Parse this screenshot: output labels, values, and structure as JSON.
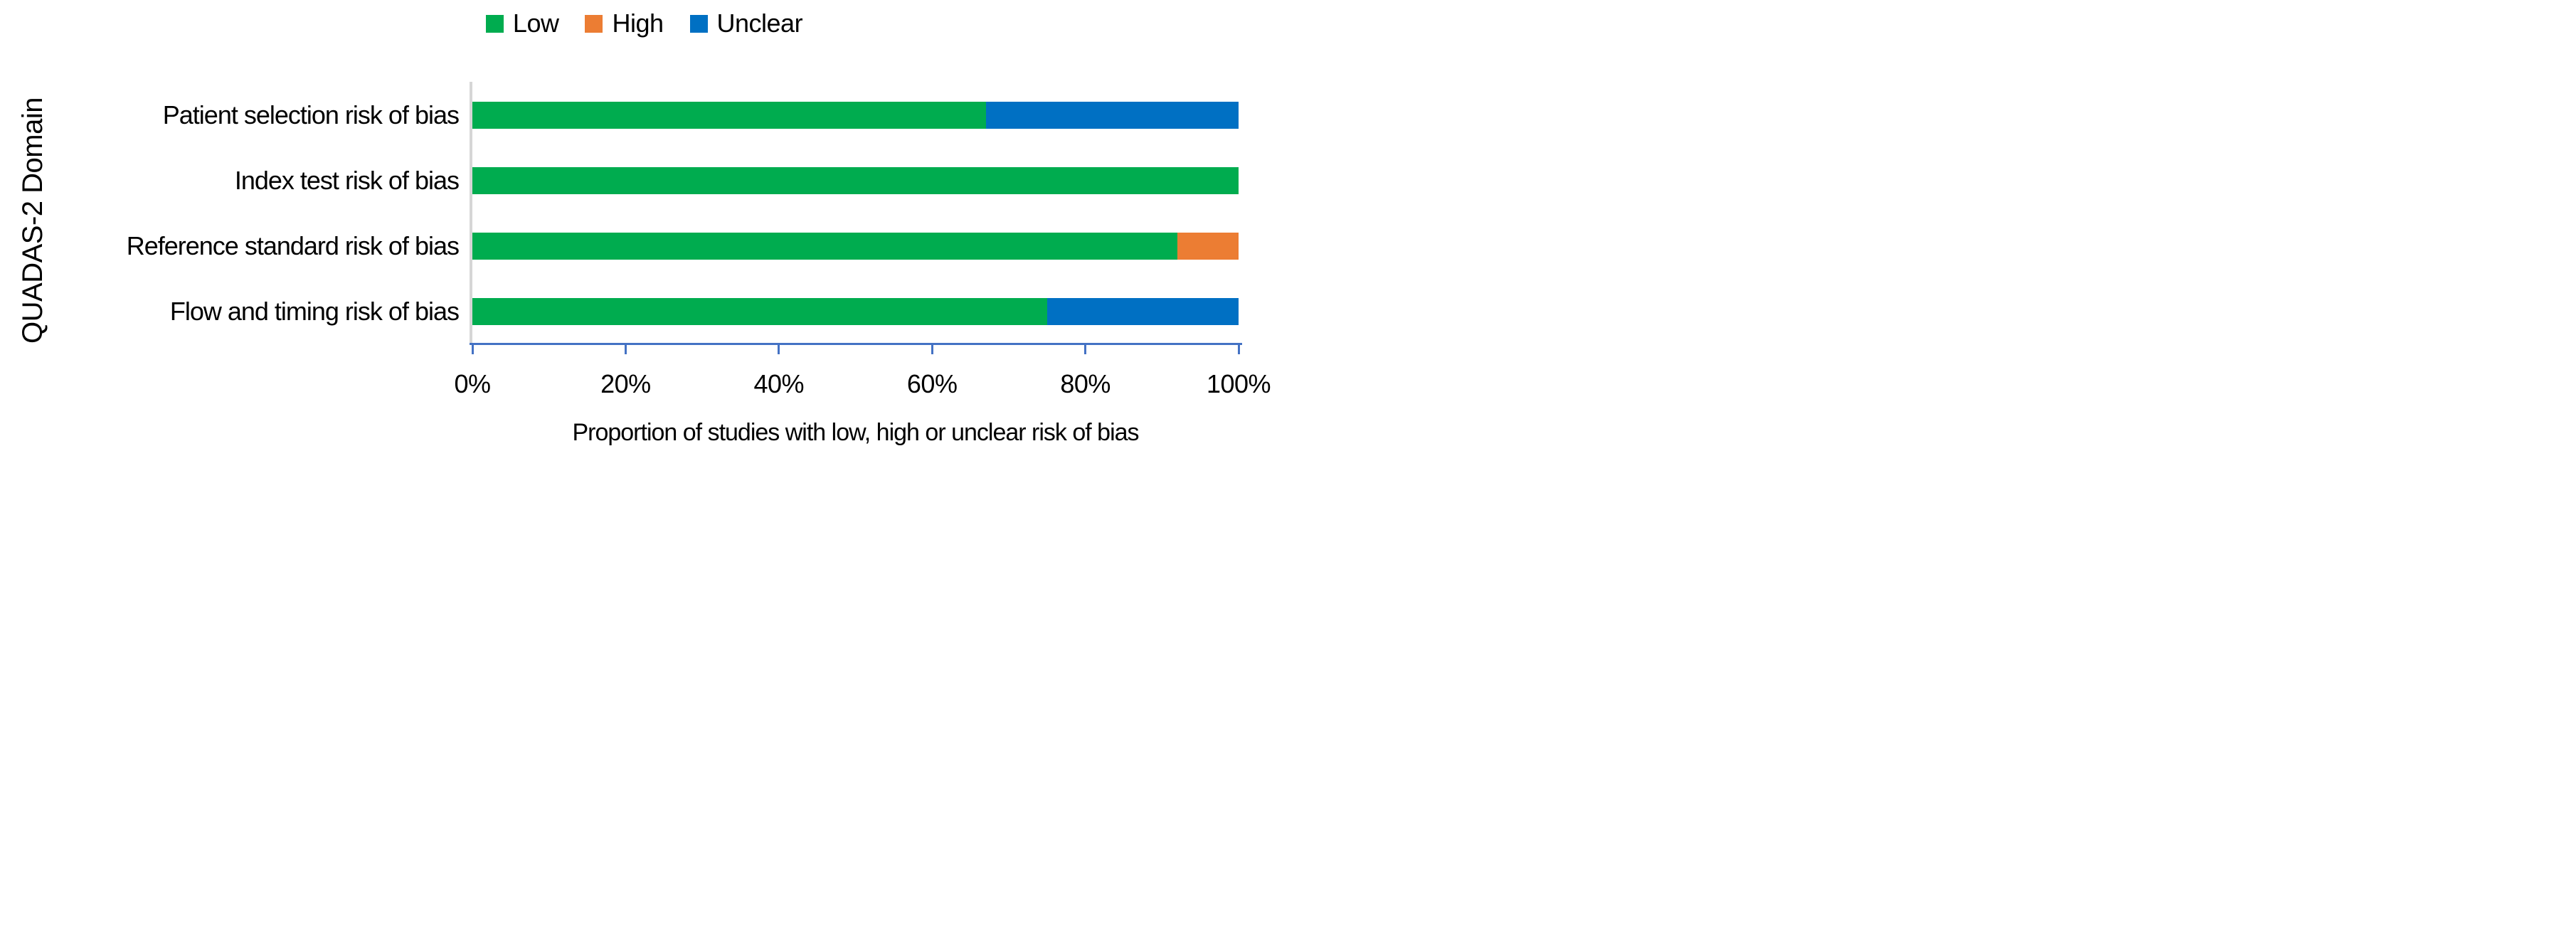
{
  "chart_data": {
    "type": "bar",
    "orientation": "horizontal",
    "stacked": true,
    "title": "",
    "xlabel": "Proportion of studies with low, high or unclear risk of bias",
    "ylabel": "QUADAS-2 Domain",
    "categories": [
      "Patient selection risk of bias",
      "Index test risk of bias",
      "Reference standard risk of bias",
      "Flow and timing risk of bias"
    ],
    "series": [
      {
        "name": "Low",
        "color": "#00ac4f",
        "values": [
          67,
          100,
          92,
          75
        ]
      },
      {
        "name": "High",
        "color": "#ec7d33",
        "values": [
          0,
          0,
          8,
          0
        ]
      },
      {
        "name": "Unclear",
        "color": "#0070c3",
        "values": [
          33,
          0,
          0,
          25
        ]
      }
    ],
    "xlim": [
      0,
      100
    ],
    "x_ticks": [
      "0%",
      "20%",
      "40%",
      "60%",
      "80%",
      "100%"
    ],
    "x_tick_values": [
      0,
      20,
      40,
      60,
      80,
      100
    ],
    "legend_position": "top-center",
    "gridlines": "off",
    "axis_line_color": "#4472c4",
    "category_axis_line_color": "#d6d6d6",
    "text_color": "#000000"
  }
}
